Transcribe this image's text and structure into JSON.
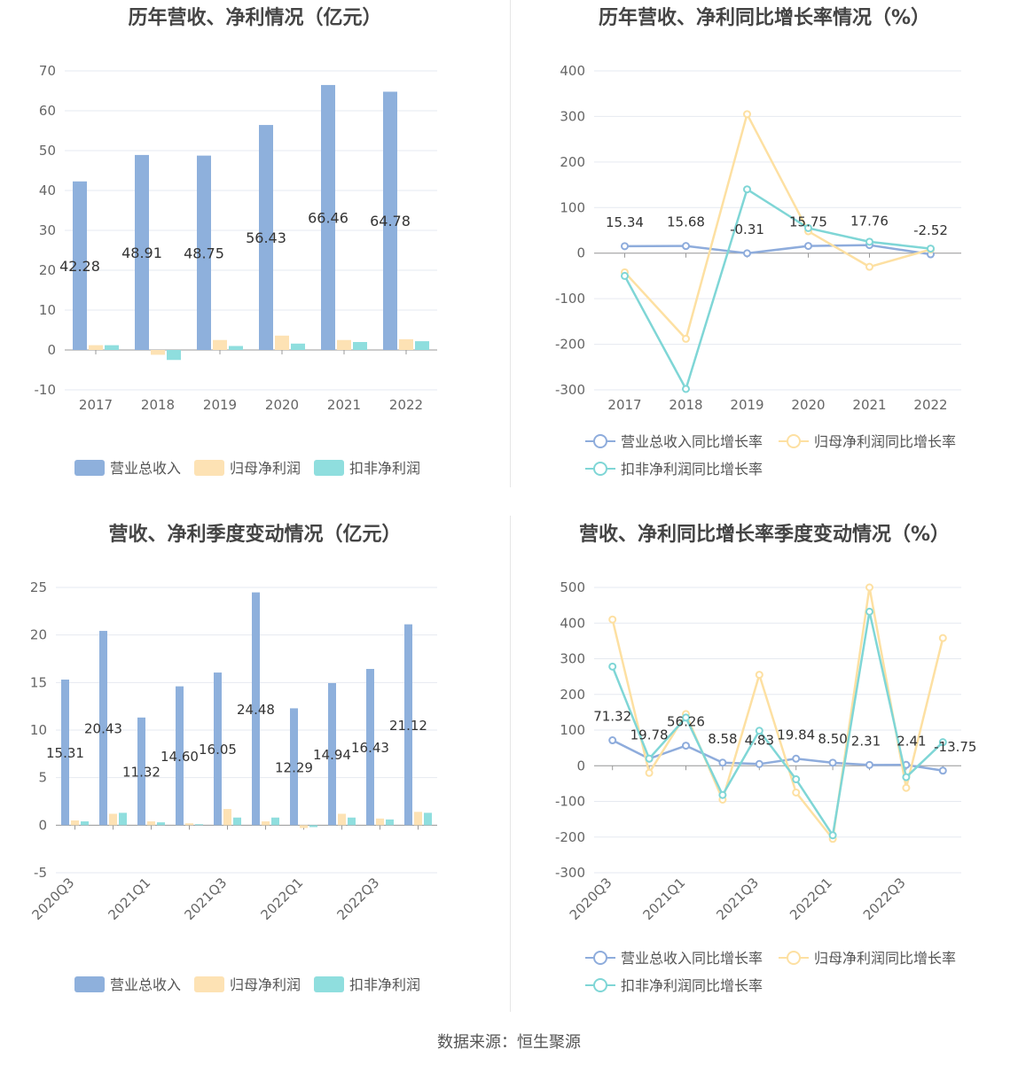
{
  "footer": {
    "source": "数据来源：恒生聚源"
  },
  "colors": {
    "revenue": "#8eb0dc",
    "parent_profit": "#fde2b4",
    "deducted_profit": "#8fdede",
    "revenue_line": "#8eacdc",
    "parent_line": "#fde0a2",
    "deducted_line": "#7fd6d6"
  },
  "chart_data": [
    {
      "id": "annual-revenue-profit",
      "type": "bar",
      "title": "历年营收、净利情况（亿元）",
      "categories": [
        "2017",
        "2018",
        "2019",
        "2020",
        "2021",
        "2022"
      ],
      "ylim": [
        -10,
        70
      ],
      "yticks": [
        -10,
        0,
        10,
        20,
        30,
        40,
        50,
        60,
        70
      ],
      "series": [
        {
          "name": "营业总收入",
          "values": [
            42.28,
            48.91,
            48.75,
            56.43,
            66.46,
            64.78
          ],
          "labels": [
            "42.28",
            "48.91",
            "48.75",
            "56.43",
            "66.46",
            "64.78"
          ]
        },
        {
          "name": "归母净利润",
          "values": [
            1.2,
            -1.2,
            2.5,
            3.6,
            2.5,
            2.7
          ]
        },
        {
          "name": "扣非净利润",
          "values": [
            1.2,
            -2.5,
            1.0,
            1.6,
            2.0,
            2.2
          ]
        }
      ],
      "legend": "bottom"
    },
    {
      "id": "annual-growth",
      "type": "line",
      "title": "历年营收、净利同比增长率情况（%）",
      "categories": [
        "2017",
        "2018",
        "2019",
        "2020",
        "2021",
        "2022"
      ],
      "ylim": [
        -300,
        400
      ],
      "yticks": [
        -300,
        -200,
        -100,
        0,
        100,
        200,
        300,
        400
      ],
      "series": [
        {
          "name": "营业总收入同比增长率",
          "values": [
            15.34,
            15.68,
            -0.31,
            15.75,
            17.76,
            -2.52
          ],
          "labels": [
            "15.34",
            "15.68",
            "-0.31",
            "15.75",
            "17.76",
            "-2.52"
          ]
        },
        {
          "name": "归母净利润同比增长率",
          "values": [
            -42,
            -188,
            305,
            48,
            -30,
            8
          ]
        },
        {
          "name": "扣非净利润同比增长率",
          "values": [
            -50,
            -298,
            140,
            55,
            25,
            10
          ]
        }
      ],
      "legend": "bottom"
    },
    {
      "id": "quarterly-revenue-profit",
      "type": "bar",
      "title": "营收、净利季度变动情况（亿元）",
      "categories": [
        "2020Q3",
        "2020Q4",
        "2021Q1",
        "2021Q2",
        "2021Q3",
        "2021Q4",
        "2022Q1",
        "2022Q2",
        "2022Q3",
        "2022Q4"
      ],
      "tick_labels": [
        "2020Q3",
        "",
        "2021Q1",
        "",
        "2021Q3",
        "",
        "2022Q1",
        "",
        "2022Q3",
        ""
      ],
      "ylim": [
        -5,
        25
      ],
      "yticks": [
        -5,
        0,
        5,
        10,
        15,
        20,
        25
      ],
      "series": [
        {
          "name": "营业总收入",
          "values": [
            15.31,
            20.43,
            11.32,
            14.6,
            16.05,
            24.48,
            12.29,
            14.94,
            16.43,
            21.12
          ],
          "labels": [
            "15.31",
            "20.43",
            "11.32",
            "14.60",
            "16.05",
            "24.48",
            "12.29",
            "14.94",
            "16.43",
            "21.12"
          ]
        },
        {
          "name": "归母净利润",
          "values": [
            0.5,
            1.2,
            0.4,
            0.2,
            1.7,
            0.4,
            -0.3,
            1.2,
            0.7,
            1.4
          ]
        },
        {
          "name": "扣非净利润",
          "values": [
            0.4,
            1.3,
            0.3,
            0.1,
            0.8,
            0.8,
            -0.2,
            0.8,
            0.6,
            1.3
          ]
        }
      ],
      "legend": "bottom"
    },
    {
      "id": "quarterly-growth",
      "type": "line",
      "title": "营收、净利同比增长率季度变动情况（%）",
      "categories": [
        "2020Q3",
        "2020Q4",
        "2021Q1",
        "2021Q2",
        "2021Q3",
        "2021Q4",
        "2022Q1",
        "2022Q2",
        "2022Q3",
        "2022Q4"
      ],
      "tick_labels": [
        "2020Q3",
        "",
        "2021Q1",
        "",
        "2021Q3",
        "",
        "2022Q1",
        "",
        "2022Q3",
        ""
      ],
      "ylim": [
        -300,
        500
      ],
      "yticks": [
        -300,
        -200,
        -100,
        0,
        100,
        200,
        300,
        400,
        500
      ],
      "series": [
        {
          "name": "营业总收入同比增长率",
          "values": [
            71.32,
            19.78,
            56.26,
            8.58,
            4.83,
            19.84,
            8.5,
            2.31,
            2.41,
            -13.75
          ],
          "labels": [
            "71.32",
            "19.78",
            "56.26",
            "8.58",
            "4.83",
            "19.84",
            "8.50",
            "2.31",
            "2.41",
            "-13.75"
          ]
        },
        {
          "name": "归母净利润同比增长率",
          "values": [
            410,
            -20,
            145,
            -95,
            255,
            -75,
            -205,
            500,
            -62,
            358
          ]
        },
        {
          "name": "扣非净利润同比增长率",
          "values": [
            278,
            20,
            135,
            -82,
            98,
            -38,
            -195,
            432,
            -32,
            66
          ]
        }
      ],
      "legend": "bottom"
    }
  ]
}
